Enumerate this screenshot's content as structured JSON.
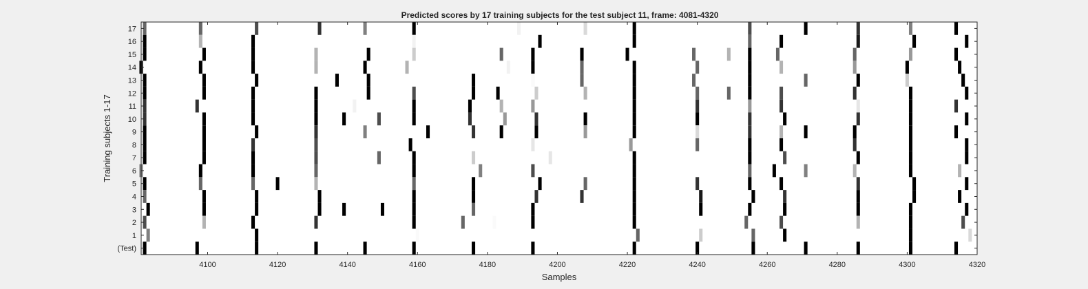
{
  "chart_data": {
    "type": "heatmap",
    "title": "Predicted scores by 17 training subjects for the test subject 11, frame: 4081-4320",
    "xlabel": "Samples",
    "ylabel": "Training subjects 1-17",
    "xlim": [
      4081,
      4320
    ],
    "x_ticks": [
      4100,
      4120,
      4140,
      4160,
      4180,
      4200,
      4220,
      4240,
      4260,
      4280,
      4300,
      4320
    ],
    "row_labels": [
      "17",
      "16",
      "15",
      "14",
      "13",
      "12",
      "11",
      "10",
      "9",
      "8",
      "7",
      "6",
      "5",
      "4",
      "3",
      "2",
      "1",
      "(Test)"
    ],
    "colormap": "gray-inverted (white = 0, black = 1)",
    "background_color": "#f0f0f0",
    "rows": [
      {
        "label": "17",
        "marks": [
          [
            4082,
            0.6
          ],
          [
            4098,
            0.6
          ],
          [
            4114,
            0.7
          ],
          [
            4132,
            0.8
          ],
          [
            4145,
            0.5
          ],
          [
            4159,
            1
          ],
          [
            4189,
            0.05
          ],
          [
            4208,
            0.15
          ],
          [
            4222,
            1
          ],
          [
            4255,
            0.7
          ],
          [
            4271,
            1
          ],
          [
            4286,
            0.8
          ],
          [
            4301,
            0.5
          ],
          [
            4314,
            1
          ]
        ]
      },
      {
        "label": "16",
        "marks": [
          [
            4082,
            1
          ],
          [
            4098,
            0.3
          ],
          [
            4113,
            1
          ],
          [
            4159,
            0.05
          ],
          [
            4195,
            1
          ],
          [
            4222,
            1
          ],
          [
            4255,
            0.6
          ],
          [
            4264,
            1
          ],
          [
            4286,
            0.9
          ],
          [
            4302,
            1
          ],
          [
            4317,
            1
          ]
        ]
      },
      {
        "label": "15",
        "marks": [
          [
            4082,
            1
          ],
          [
            4099,
            1
          ],
          [
            4113,
            1
          ],
          [
            4131,
            0.3
          ],
          [
            4146,
            1
          ],
          [
            4159,
            0.2
          ],
          [
            4184,
            0.6
          ],
          [
            4193,
            1
          ],
          [
            4207,
            1
          ],
          [
            4220,
            1
          ],
          [
            4239,
            0.6
          ],
          [
            4249,
            0.3
          ],
          [
            4255,
            1
          ],
          [
            4263,
            0.6
          ],
          [
            4285,
            0.6
          ],
          [
            4301,
            0.4
          ],
          [
            4314,
            1
          ]
        ]
      },
      {
        "label": "14",
        "marks": [
          [
            4081,
            1
          ],
          [
            4098,
            1
          ],
          [
            4113,
            1
          ],
          [
            4131,
            0.3
          ],
          [
            4145,
            1
          ],
          [
            4157,
            0.3
          ],
          [
            4186,
            0.05
          ],
          [
            4193,
            1
          ],
          [
            4207,
            0.6
          ],
          [
            4222,
            1
          ],
          [
            4240,
            0.6
          ],
          [
            4255,
            1
          ],
          [
            4264,
            0.3
          ],
          [
            4285,
            0.4
          ],
          [
            4300,
            1
          ],
          [
            4315,
            1
          ]
        ]
      },
      {
        "label": "13",
        "marks": [
          [
            4082,
            1
          ],
          [
            4099,
            1
          ],
          [
            4114,
            1
          ],
          [
            4137,
            1
          ],
          [
            4146,
            1
          ],
          [
            4176,
            1
          ],
          [
            4193,
            0.02
          ],
          [
            4207,
            0.6
          ],
          [
            4222,
            1
          ],
          [
            4239,
            0.6
          ],
          [
            4255,
            1
          ],
          [
            4271,
            0.6
          ],
          [
            4286,
            1
          ],
          [
            4300,
            0.2
          ],
          [
            4316,
            1
          ]
        ]
      },
      {
        "label": "12",
        "marks": [
          [
            4082,
            1
          ],
          [
            4099,
            1
          ],
          [
            4113,
            1
          ],
          [
            4131,
            1
          ],
          [
            4146,
            1
          ],
          [
            4159,
            0.7
          ],
          [
            4176,
            1
          ],
          [
            4183,
            1
          ],
          [
            4194,
            0.2
          ],
          [
            4208,
            0.3
          ],
          [
            4222,
            1
          ],
          [
            4240,
            0.6
          ],
          [
            4249,
            0.6
          ],
          [
            4255,
            1
          ],
          [
            4264,
            0.7
          ],
          [
            4285,
            0.8
          ],
          [
            4301,
            1
          ],
          [
            4317,
            1
          ]
        ]
      },
      {
        "label": "11",
        "marks": [
          [
            4082,
            0.8
          ],
          [
            4097,
            0.8
          ],
          [
            4113,
            1
          ],
          [
            4131,
            1
          ],
          [
            4142,
            0.05
          ],
          [
            4159,
            1
          ],
          [
            4175,
            1
          ],
          [
            4184,
            0.3
          ],
          [
            4193,
            0.4
          ],
          [
            4222,
            1
          ],
          [
            4240,
            0.8
          ],
          [
            4255,
            0.4
          ],
          [
            4264,
            0.8
          ],
          [
            4286,
            0.1
          ],
          [
            4301,
            1
          ],
          [
            4314,
            0.8
          ]
        ]
      },
      {
        "label": "10",
        "marks": [
          [
            4082,
            0.8
          ],
          [
            4099,
            1
          ],
          [
            4113,
            1
          ],
          [
            4131,
            1
          ],
          [
            4139,
            1
          ],
          [
            4149,
            0.7
          ],
          [
            4159,
            1
          ],
          [
            4175,
            0.8
          ],
          [
            4185,
            0.4
          ],
          [
            4194,
            0.8
          ],
          [
            4208,
            1
          ],
          [
            4222,
            1
          ],
          [
            4240,
            1
          ],
          [
            4255,
            0.8
          ],
          [
            4265,
            1
          ],
          [
            4286,
            0.8
          ],
          [
            4301,
            1
          ],
          [
            4317,
            1
          ]
        ]
      },
      {
        "label": "9",
        "marks": [
          [
            4082,
            1
          ],
          [
            4099,
            1
          ],
          [
            4114,
            1
          ],
          [
            4131,
            0.8
          ],
          [
            4145,
            0.5
          ],
          [
            4163,
            1
          ],
          [
            4176,
            0.8
          ],
          [
            4184,
            1
          ],
          [
            4194,
            1
          ],
          [
            4208,
            0.4
          ],
          [
            4222,
            1
          ],
          [
            4240,
            0.15
          ],
          [
            4255,
            0.8
          ],
          [
            4264,
            0.3
          ],
          [
            4271,
            1
          ],
          [
            4285,
            1
          ],
          [
            4301,
            1
          ],
          [
            4314,
            1
          ]
        ]
      },
      {
        "label": "8",
        "marks": [
          [
            4082,
            1
          ],
          [
            4099,
            1
          ],
          [
            4113,
            0.8
          ],
          [
            4131,
            0.7
          ],
          [
            4158,
            1
          ],
          [
            4193,
            0.1
          ],
          [
            4221,
            0.4
          ],
          [
            4240,
            0.6
          ],
          [
            4255,
            1
          ],
          [
            4264,
            1
          ],
          [
            4285,
            0.8
          ],
          [
            4301,
            1
          ],
          [
            4317,
            1
          ]
        ]
      },
      {
        "label": "7",
        "marks": [
          [
            4082,
            1
          ],
          [
            4099,
            1
          ],
          [
            4113,
            1
          ],
          [
            4131,
            0.7
          ],
          [
            4149,
            0.6
          ],
          [
            4159,
            1
          ],
          [
            4176,
            0.2
          ],
          [
            4198,
            0.1
          ],
          [
            4222,
            1
          ],
          [
            4255,
            1
          ],
          [
            4265,
            0.7
          ],
          [
            4286,
            1
          ],
          [
            4301,
            1
          ],
          [
            4317,
            1
          ]
        ]
      },
      {
        "label": "6",
        "marks": [
          [
            4081,
            0.5
          ],
          [
            4098,
            1
          ],
          [
            4113,
            1
          ],
          [
            4131,
            0.6
          ],
          [
            4159,
            1
          ],
          [
            4178,
            0.5
          ],
          [
            4193,
            0.7
          ],
          [
            4222,
            1
          ],
          [
            4255,
            0.6
          ],
          [
            4262,
            1
          ],
          [
            4271,
            0.5
          ],
          [
            4285,
            0.3
          ],
          [
            4301,
            1
          ],
          [
            4315,
            0.3
          ]
        ]
      },
      {
        "label": "5",
        "marks": [
          [
            4082,
            1
          ],
          [
            4098,
            0.6
          ],
          [
            4113,
            0.6
          ],
          [
            4120,
            1
          ],
          [
            4131,
            0.3
          ],
          [
            4159,
            0.6
          ],
          [
            4176,
            1
          ],
          [
            4195,
            1
          ],
          [
            4208,
            0.6
          ],
          [
            4222,
            1
          ],
          [
            4240,
            0.8
          ],
          [
            4255,
            1
          ],
          [
            4264,
            1
          ],
          [
            4286,
            0.8
          ],
          [
            4302,
            1
          ],
          [
            4317,
            1
          ]
        ]
      },
      {
        "label": "4",
        "marks": [
          [
            4082,
            0.6
          ],
          [
            4099,
            1
          ],
          [
            4114,
            1
          ],
          [
            4132,
            1
          ],
          [
            4159,
            1
          ],
          [
            4176,
            1
          ],
          [
            4194,
            0.8
          ],
          [
            4207,
            0.8
          ],
          [
            4222,
            1
          ],
          [
            4241,
            0.9
          ],
          [
            4256,
            1
          ],
          [
            4265,
            0.8
          ],
          [
            4286,
            1
          ],
          [
            4302,
            1
          ],
          [
            4315,
            1
          ]
        ]
      },
      {
        "label": "3",
        "marks": [
          [
            4083,
            1
          ],
          [
            4099,
            1
          ],
          [
            4114,
            1
          ],
          [
            4132,
            1
          ],
          [
            4139,
            1
          ],
          [
            4150,
            1
          ],
          [
            4159,
            1
          ],
          [
            4176,
            0.6
          ],
          [
            4193,
            1
          ],
          [
            4222,
            1
          ],
          [
            4241,
            1
          ],
          [
            4255,
            1
          ],
          [
            4265,
            1
          ],
          [
            4286,
            1
          ],
          [
            4301,
            1
          ],
          [
            4317,
            1
          ]
        ]
      },
      {
        "label": "2",
        "marks": [
          [
            4082,
            0.7
          ],
          [
            4099,
            0.3
          ],
          [
            4113,
            1
          ],
          [
            4131,
            0.8
          ],
          [
            4159,
            1
          ],
          [
            4173,
            0.6
          ],
          [
            4182,
            0.02
          ],
          [
            4193,
            1
          ],
          [
            4222,
            1
          ],
          [
            4254,
            0.6
          ],
          [
            4264,
            0.7
          ],
          [
            4286,
            0.3
          ],
          [
            4301,
            1
          ],
          [
            4316,
            0.7
          ]
        ]
      },
      {
        "label": "1",
        "marks": [
          [
            4083,
            0.5
          ],
          [
            4114,
            1
          ],
          [
            4160,
            0.02
          ],
          [
            4223,
            0.6
          ],
          [
            4241,
            0.2
          ],
          [
            4256,
            0.6
          ],
          [
            4265,
            1
          ],
          [
            4301,
            1
          ],
          [
            4318,
            0.15
          ]
        ]
      },
      {
        "label": "(Test)",
        "marks": [
          [
            4082,
            1
          ],
          [
            4097,
            1
          ],
          [
            4114,
            1
          ],
          [
            4131,
            1
          ],
          [
            4145,
            1
          ],
          [
            4159,
            1
          ],
          [
            4176,
            1
          ],
          [
            4193,
            1
          ],
          [
            4222,
            1
          ],
          [
            4240,
            1
          ],
          [
            4256,
            1
          ],
          [
            4271,
            1
          ],
          [
            4286,
            1
          ],
          [
            4301,
            1
          ],
          [
            4314,
            1
          ]
        ]
      }
    ]
  }
}
